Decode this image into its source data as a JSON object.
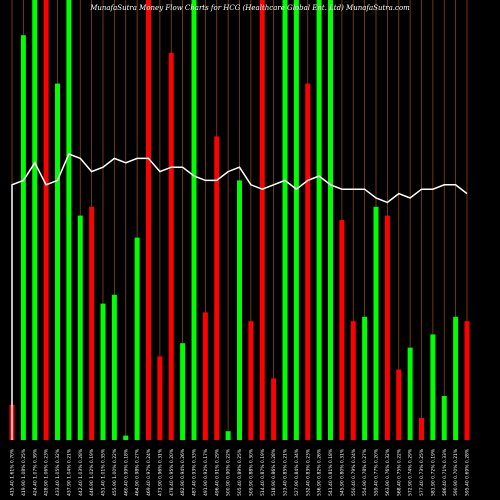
{
  "chart_data": {
    "type": "bar",
    "title": "MunafaSutra Money Flow Charts for HCG (Healthcare Global Ent. Ltd) MunafaSutra.com",
    "xlabel": "",
    "ylabel": "",
    "ylim": [
      0,
      100
    ],
    "grid": true,
    "legend": "none",
    "colors": {
      "up": "#00ff00",
      "down": "#ff0000",
      "line": "#ffffff",
      "grid": "#8b4513",
      "background": "#000000"
    },
    "categories": [
      "Fri 10 Jan 2025",
      "Mon 13 Jan 2025",
      "Tue 14 Jan 2025",
      "Wed 15 Jan 2025",
      "Thu 16 Jan 2025",
      "Fri 17 Jan 2025",
      "Mon 20 Jan 2025",
      "Tue 21 Jan 2025",
      "Wed 22 Jan 2025",
      "Thu 23 Jan 2025",
      "Fri 24 Jan 2025",
      "Mon 27 Jan 2025",
      "Tue 28 Jan 2025",
      "Wed 29 Jan 2025",
      "Thu 30 Jan 2025",
      "Fri 31 Jan 2025",
      "Sat 01 Feb 2025",
      "Mon 03 Feb 2025",
      "Tue 04 Feb 2025",
      "Wed 05 Feb 2025",
      "Thu 06 Feb 2025",
      "Fri 07 Feb 2025",
      "Mon 10 Feb 2025",
      "Tue 11 Feb 2025",
      "Wed 12 Feb 2025",
      "Thu 13 Feb 2025",
      "Fri 14 Feb 2025",
      "Mon 17 Feb 2025",
      "Tue 18 Feb 2025",
      "Wed 19 Feb 2025",
      "Thu 20 Feb 2025",
      "Fri 21 Feb 2025",
      "Mon 24 Feb 2025",
      "Tue 25 Feb 2025",
      "Thu 27 Feb 2025",
      "Fri 28 Feb 2025",
      "Mon 03 Mar 2025",
      "Tue 04 Mar 2025",
      "Wed 05 Mar 2025",
      "Thu 06 Mar 2025",
      "Fri 07 Mar 2025"
    ],
    "tick_labels": [
      "415.40 1.61% 0.70%",
      "419.90 1.08% 0.25%",
      "424.40 1.07% 0.39%",
      "428.90 1.06% 0.23%",
      "433.40 1.05% 0.32%",
      "437.90 1.04% 0.21%",
      "442.40 1.03% 0.28%",
      "446.90 1.02% 0.19%",
      "451.40 1.01% 0.35%",
      "455.90 1.00% 0.22%",
      "460.40 0.99% 0.18%",
      "464.90 0.98% 0.27%",
      "469.40 0.97% 0.24%",
      "473.90 0.96% 0.31%",
      "478.40 0.95% 0.20%",
      "482.90 0.94% 0.26%",
      "487.40 0.93% 0.33%",
      "491.90 0.92% 0.17%",
      "496.40 0.91% 0.29%",
      "500.90 0.90% 0.22%",
      "505.40 0.89% 0.25%",
      "509.90 0.88% 0.30%",
      "514.40 0.87% 0.19%",
      "518.90 0.86% 0.28%",
      "523.40 0.85% 0.21%",
      "527.90 0.84% 0.34%",
      "532.40 0.83% 0.23%",
      "536.90 0.82% 0.26%",
      "541.40 0.81% 0.18%",
      "545.90 0.80% 0.31%",
      "550.40 0.79% 0.24%",
      "554.90 0.78% 0.27%",
      "559.40 0.77% 0.20%",
      "563.90 0.76% 0.32%",
      "568.40 0.75% 0.22%",
      "572.90 0.74% 0.29%",
      "577.40 0.73% 0.25%",
      "581.90 0.72% 0.19%",
      "586.40 0.71% 0.33%",
      "590.90 0.70% 0.21%",
      "595.40 0.69% 0.28%"
    ],
    "series": [
      {
        "type": "bar",
        "values": [
          8,
          92,
          100,
          100,
          81,
          100,
          51,
          53,
          31,
          33,
          1,
          46,
          100,
          19,
          88,
          22,
          100,
          29,
          69,
          2,
          59,
          27,
          100,
          14,
          100,
          100,
          81,
          100,
          100,
          50,
          27,
          28,
          53,
          51,
          16,
          21,
          5,
          24,
          10,
          28,
          27
        ],
        "directions": [
          "down",
          "up",
          "up",
          "down",
          "up",
          "up",
          "up",
          "down",
          "up",
          "up",
          "up",
          "up",
          "down",
          "down",
          "down",
          "up",
          "up",
          "down",
          "down",
          "up",
          "up",
          "down",
          "down",
          "down",
          "up",
          "up",
          "down",
          "up",
          "up",
          "down",
          "down",
          "up",
          "up",
          "down",
          "down",
          "up",
          "down",
          "up",
          "up",
          "up",
          "down"
        ]
      },
      {
        "type": "line",
        "values": [
          58,
          59,
          63,
          58,
          59,
          65,
          64,
          61,
          62,
          64,
          63,
          64,
          64,
          61,
          62,
          62,
          60,
          59,
          59,
          61,
          62,
          58,
          57,
          58,
          59,
          57,
          59,
          60,
          58,
          57,
          57,
          57,
          55,
          54,
          56,
          55,
          57,
          57,
          58,
          58,
          56
        ]
      }
    ]
  }
}
